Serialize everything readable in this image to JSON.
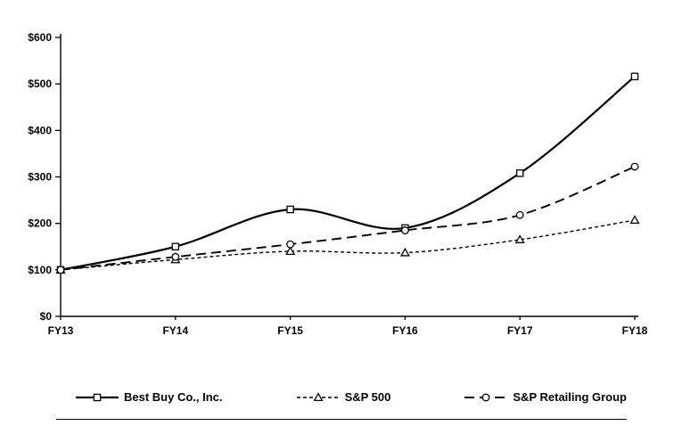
{
  "chart_data": {
    "type": "line",
    "x": [
      "FY13",
      "FY14",
      "FY15",
      "FY16",
      "FY17",
      "FY18"
    ],
    "y_ticks": [
      "$0",
      "$100",
      "$200",
      "$300",
      "$400",
      "$500",
      "$600"
    ],
    "ylim": [
      0,
      600
    ],
    "grid": false,
    "legend_position": "bottom",
    "colors": {
      "line": "#000000",
      "background": "#ffffff",
      "marker_fill": "#ffffff"
    },
    "series": [
      {
        "name": "Best Buy Co., Inc.",
        "marker": "square",
        "line_style": "solid",
        "values": [
          100,
          150,
          230,
          190,
          308,
          516
        ]
      },
      {
        "name": "S&P 500",
        "marker": "triangle",
        "line_style": "short-dash",
        "values": [
          100,
          122,
          140,
          137,
          165,
          207
        ]
      },
      {
        "name": "S&P Retailing Group",
        "marker": "circle",
        "line_style": "long-dash",
        "values": [
          100,
          128,
          155,
          185,
          218,
          322
        ]
      }
    ]
  }
}
